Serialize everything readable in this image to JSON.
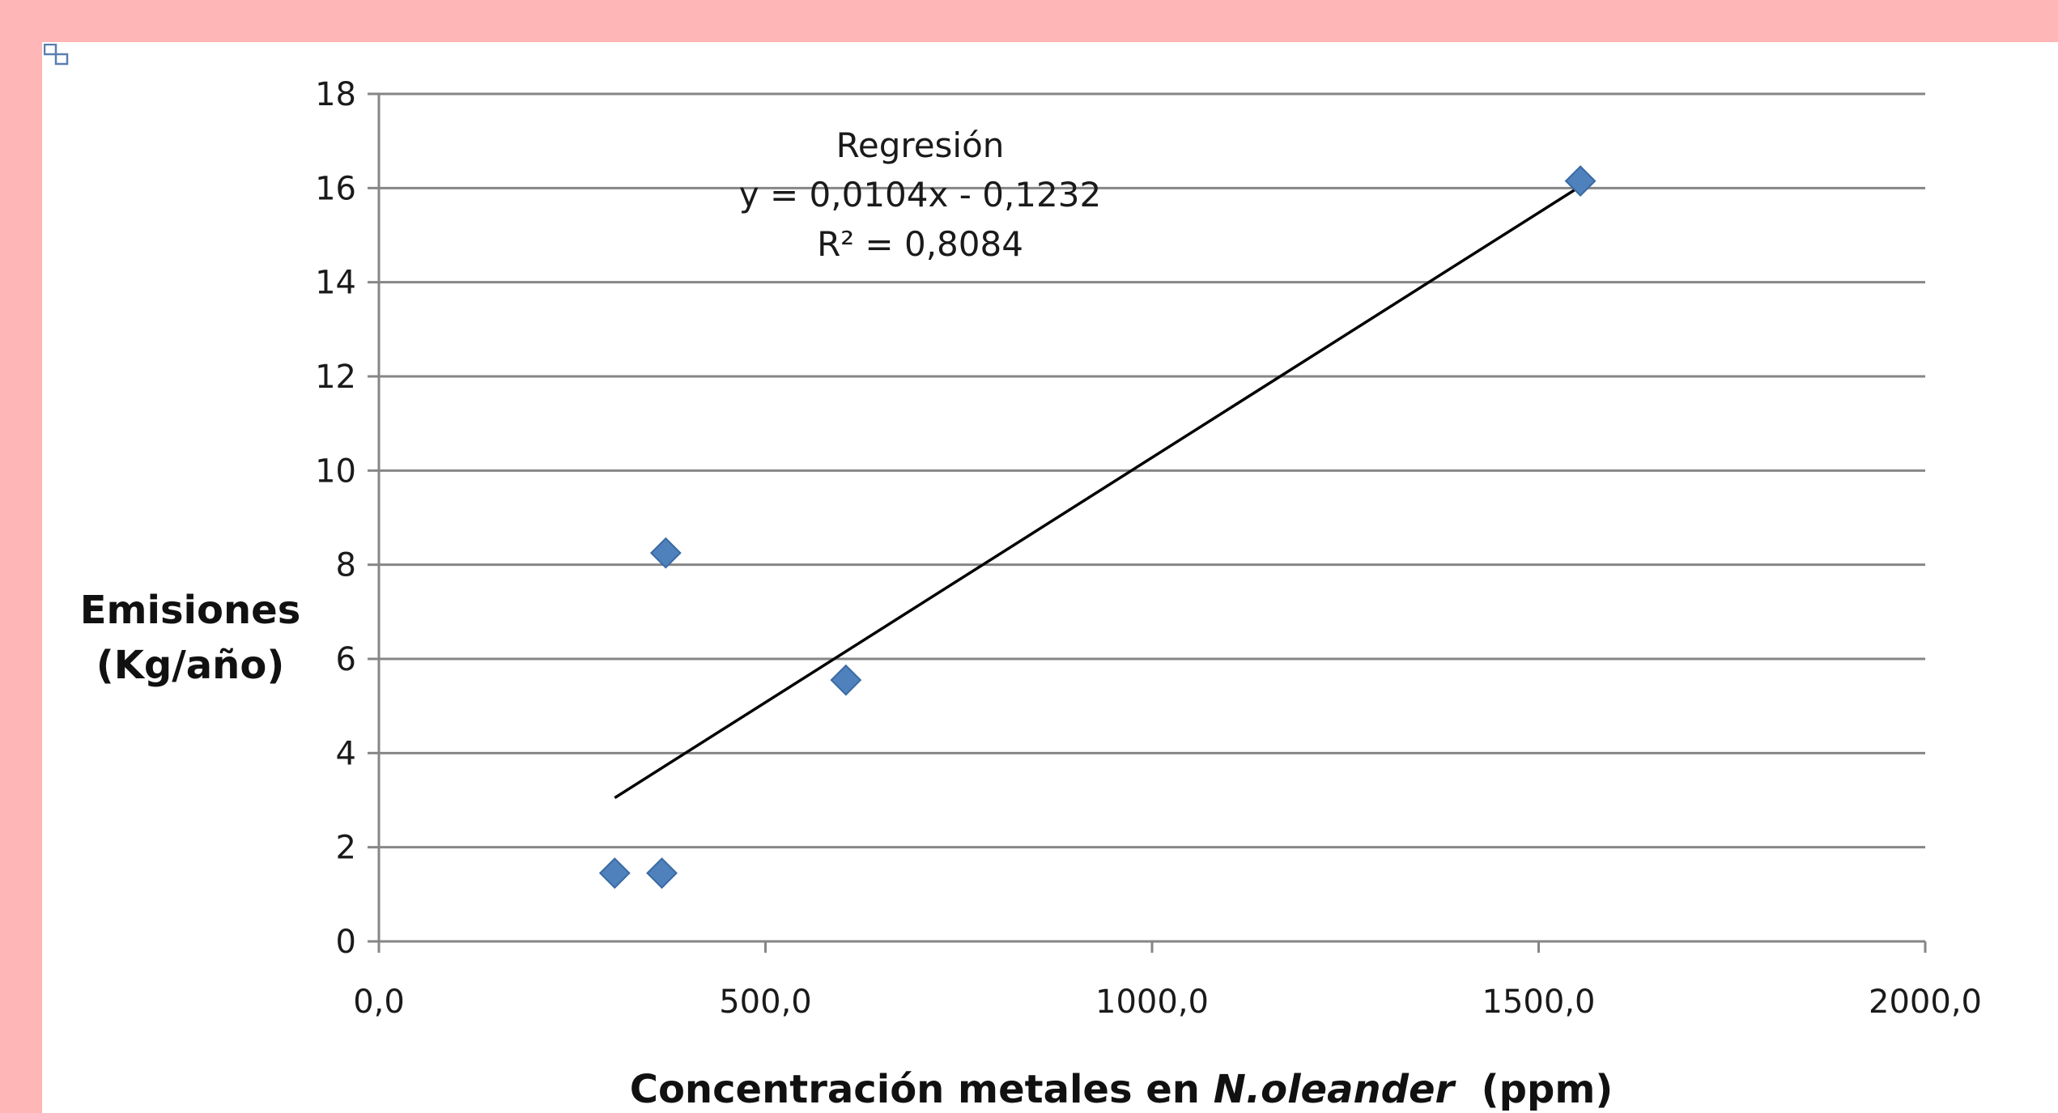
{
  "theme": {
    "frame_color": "#ffb6b6",
    "marker_color": "#4f81bd",
    "marker_stroke": "#3a6aa3",
    "gridline_color": "#868686",
    "axis_color": "#868686",
    "trendline_color": "#000000"
  },
  "icons": {
    "anchor": "resize-anchor-icon"
  },
  "chart_data": {
    "type": "scatter",
    "title": "",
    "xlabel": {
      "prefix": "Concentración metales en ",
      "species": "N.oleander",
      "suffix": "  (ppm)"
    },
    "ylabel": [
      "Emisiones",
      "(Kg/año)"
    ],
    "xlim": [
      0,
      2000
    ],
    "ylim": [
      0,
      18
    ],
    "x_ticks": [
      0,
      500,
      1000,
      1500,
      2000
    ],
    "x_tick_labels": [
      "0,0",
      "500,0",
      "1000,0",
      "1500,0",
      "2000,0"
    ],
    "y_ticks": [
      0,
      2,
      4,
      6,
      8,
      10,
      12,
      14,
      16,
      18
    ],
    "y_tick_labels": [
      "0",
      "2",
      "4",
      "6",
      "8",
      "10",
      "12",
      "14",
      "16",
      "18"
    ],
    "grid": {
      "horizontal": true,
      "vertical": false
    },
    "legend": "none",
    "series": [
      {
        "marker": "diamond",
        "points": [
          {
            "x": 305,
            "y": 1.45
          },
          {
            "x": 366,
            "y": 1.45
          },
          {
            "x": 371,
            "y": 8.25
          },
          {
            "x": 604,
            "y": 5.55
          },
          {
            "x": 1554,
            "y": 16.15
          }
        ]
      }
    ],
    "trendline": {
      "type": "linear",
      "slope": 0.0104,
      "intercept": -0.1232,
      "x_range": [
        305,
        1554
      ]
    },
    "annotation": {
      "lines": [
        "Regresión",
        "y = 0,0104x - 0,1232",
        "R² = 0,8084"
      ],
      "anchor": {
        "x": 700,
        "y": 16.9
      }
    }
  }
}
